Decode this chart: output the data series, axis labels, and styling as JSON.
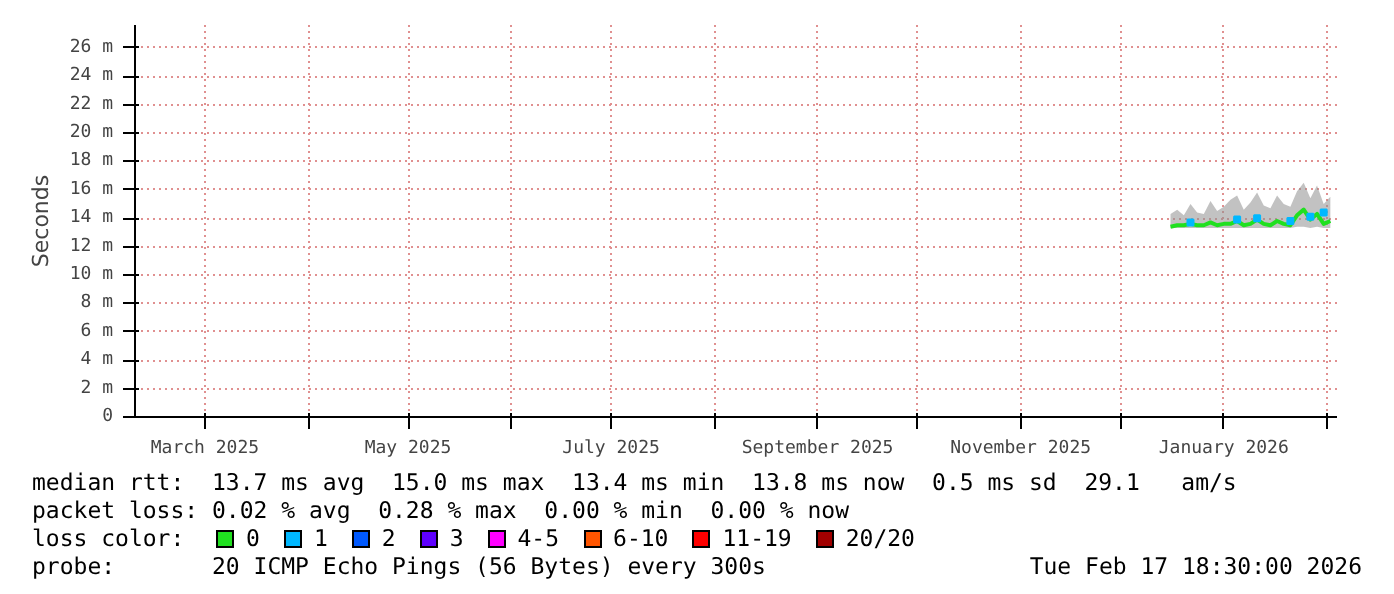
{
  "chart_data": {
    "type": "line",
    "ylabel": "Seconds",
    "legend_title": "loss color:",
    "legend": "bottom",
    "grid": true,
    "x": [
      "2025-12-16",
      "2025-12-18",
      "2025-12-20",
      "2025-12-22",
      "2025-12-24",
      "2025-12-26",
      "2025-12-28",
      "2025-12-30",
      "2026-01-01",
      "2026-01-03",
      "2026-01-05",
      "2026-01-07",
      "2026-01-09",
      "2026-01-11",
      "2026-01-13",
      "2026-01-15",
      "2026-01-17",
      "2026-01-19",
      "2026-01-21",
      "2026-01-23",
      "2026-01-25",
      "2026-01-27",
      "2026-01-29",
      "2026-01-31",
      "2026-02-02"
    ],
    "xlim": [
      "2025-02-08",
      "2026-02-04"
    ],
    "xticks": [
      {
        "value": "2025-03-01",
        "label": "March 2025"
      },
      {
        "value": "2025-04-01",
        "label": null
      },
      {
        "value": "2025-05-01",
        "label": "May 2025"
      },
      {
        "value": "2025-06-01",
        "label": null
      },
      {
        "value": "2025-07-01",
        "label": "July 2025"
      },
      {
        "value": "2025-08-01",
        "label": null
      },
      {
        "value": "2025-09-01",
        "label": "September 2025"
      },
      {
        "value": "2025-10-01",
        "label": null
      },
      {
        "value": "2025-11-01",
        "label": "November 2025"
      },
      {
        "value": "2025-12-01",
        "label": null
      },
      {
        "value": "2026-01-01",
        "label": "January 2026"
      },
      {
        "value": "2026-02-01",
        "label": null
      }
    ],
    "ylim": [
      0,
      27.6
    ],
    "yticks": [
      {
        "value": 0,
        "label": "0"
      },
      {
        "value": 2,
        "label": "2 m"
      },
      {
        "value": 4,
        "label": "4 m"
      },
      {
        "value": 6,
        "label": "6 m"
      },
      {
        "value": 8,
        "label": "8 m"
      },
      {
        "value": 10,
        "label": "10 m"
      },
      {
        "value": 12,
        "label": "12 m"
      },
      {
        "value": 14,
        "label": "14 m"
      },
      {
        "value": 16,
        "label": "16 m"
      },
      {
        "value": 18,
        "label": "18 m"
      },
      {
        "value": 20,
        "label": "20 m"
      },
      {
        "value": 22,
        "label": "22 m"
      },
      {
        "value": 24,
        "label": "24 m"
      },
      {
        "value": 26,
        "label": "26 m"
      }
    ],
    "series": [
      {
        "name": "0",
        "color": "#20e020",
        "values": [
          13.4,
          13.5,
          13.5,
          13.6,
          13.5,
          13.5,
          13.7,
          13.5,
          13.6,
          13.6,
          13.8,
          13.5,
          13.6,
          13.9,
          13.6,
          13.5,
          13.8,
          13.6,
          13.5,
          14.2,
          14.6,
          13.9,
          14.3,
          13.6,
          13.8
        ],
        "lower": [
          13.3,
          13.3,
          13.3,
          13.3,
          13.3,
          13.3,
          13.3,
          13.3,
          13.3,
          13.3,
          13.3,
          13.3,
          13.3,
          13.3,
          13.3,
          13.3,
          13.3,
          13.3,
          13.3,
          13.4,
          13.4,
          13.3,
          13.4,
          13.3,
          13.3
        ],
        "upper": [
          14.3,
          14.6,
          14.2,
          15.0,
          14.4,
          14.3,
          15.2,
          14.5,
          14.8,
          15.3,
          15.6,
          14.6,
          15.1,
          15.8,
          14.9,
          14.7,
          15.6,
          15.0,
          14.8,
          15.9,
          16.5,
          15.4,
          16.3,
          15.0,
          15.5
        ]
      },
      {
        "name": "1",
        "color": "#00b8ff",
        "type": "scatter",
        "values": [
          null,
          null,
          null,
          13.7,
          null,
          null,
          null,
          null,
          null,
          null,
          13.9,
          null,
          null,
          14.0,
          null,
          null,
          null,
          null,
          13.8,
          null,
          null,
          14.1,
          null,
          14.4,
          null
        ]
      },
      {
        "name": "2",
        "color": "#0059ff",
        "type": "scatter",
        "values": [
          null,
          null,
          null,
          null,
          null,
          null,
          null,
          null,
          null,
          null,
          null,
          null,
          null,
          null,
          null,
          null,
          null,
          null,
          null,
          null,
          null,
          null,
          null,
          null,
          null
        ]
      },
      {
        "name": "3",
        "color": "#5e00ff",
        "type": "scatter",
        "values": [
          null,
          null,
          null,
          null,
          null,
          null,
          null,
          null,
          null,
          null,
          null,
          null,
          null,
          null,
          null,
          null,
          null,
          null,
          null,
          null,
          null,
          null,
          null,
          null,
          null
        ]
      },
      {
        "name": "4-5",
        "color": "#ff00ff",
        "type": "scatter",
        "values": [
          null,
          null,
          null,
          null,
          null,
          null,
          null,
          null,
          null,
          null,
          null,
          null,
          null,
          null,
          null,
          null,
          null,
          null,
          null,
          null,
          null,
          null,
          null,
          null,
          null
        ]
      },
      {
        "name": "6-10",
        "color": "#ff5500",
        "type": "scatter",
        "values": [
          null,
          null,
          null,
          null,
          null,
          null,
          null,
          null,
          null,
          null,
          null,
          null,
          null,
          null,
          null,
          null,
          null,
          null,
          null,
          null,
          null,
          null,
          null,
          null,
          null
        ]
      },
      {
        "name": "11-19",
        "color": "#ff0000",
        "type": "scatter",
        "values": [
          null,
          null,
          null,
          null,
          null,
          null,
          null,
          null,
          null,
          null,
          null,
          null,
          null,
          null,
          null,
          null,
          null,
          null,
          null,
          null,
          null,
          null,
          null,
          null,
          null
        ]
      },
      {
        "name": "20/20",
        "color": "#a10000",
        "type": "scatter",
        "values": [
          null,
          null,
          null,
          null,
          null,
          null,
          null,
          null,
          null,
          null,
          null,
          null,
          null,
          null,
          null,
          null,
          null,
          null,
          null,
          null,
          null,
          null,
          null,
          null,
          null
        ]
      }
    ],
    "annotations": [
      "median rtt:  13.7 ms avg  15.0 ms max  13.4 ms min  13.8 ms now  0.5 ms sd  29.1   am/s",
      "packet loss: 0.02 % avg  0.28 % max  0.00 % min  0.00 % now",
      "probe:       20 ICMP Echo Pings (56 Bytes) every 300s",
      "Tue Feb 17 18:30:00 2026"
    ]
  }
}
